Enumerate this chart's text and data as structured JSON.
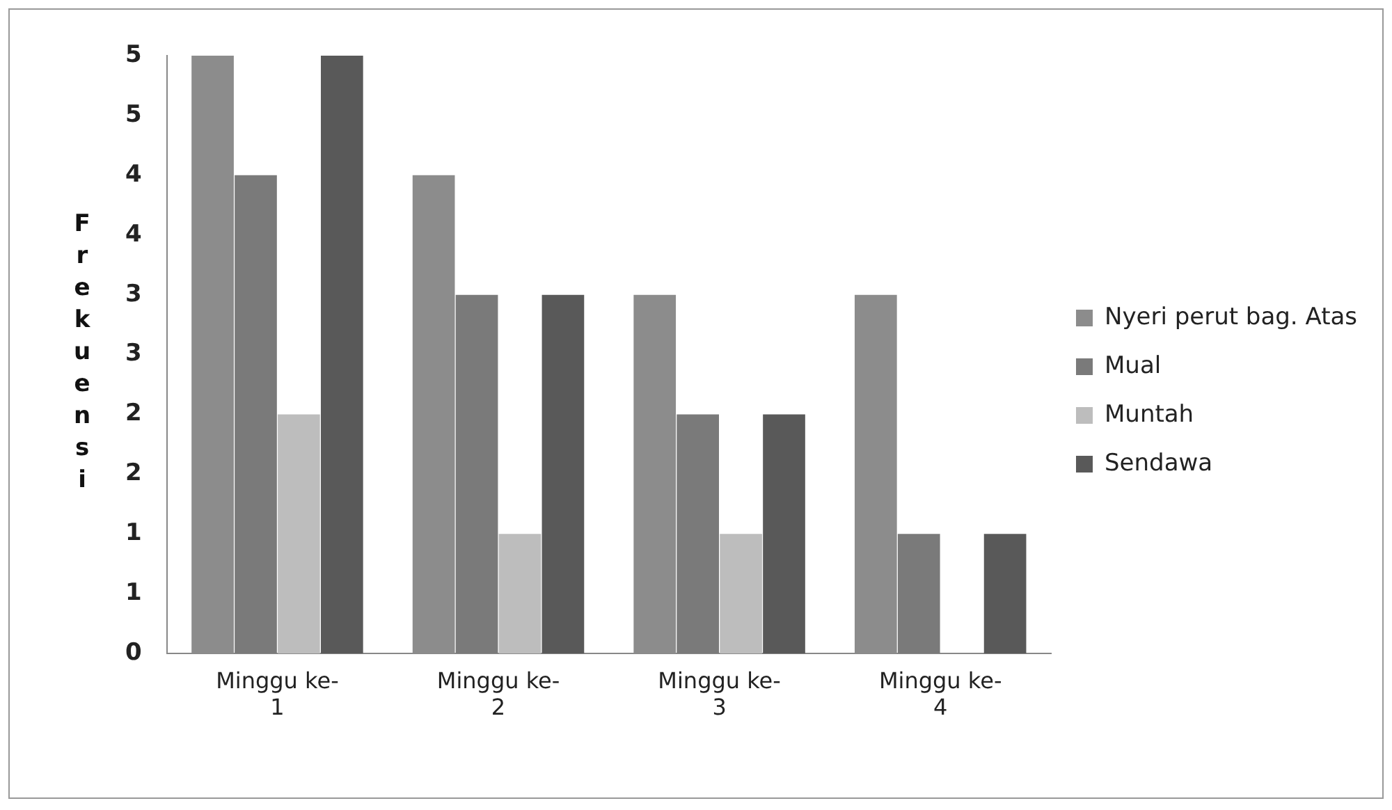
{
  "chart_data": {
    "type": "bar",
    "ylabel": "Frekuensi",
    "categories": [
      "Minggu ke-1",
      "Minggu ke-2",
      "Minggu ke-3",
      "Minggu ke-4"
    ],
    "series": [
      {
        "name": "Nyeri perut bag. Atas",
        "color": "#8c8c8c",
        "values": [
          5,
          4,
          3,
          3
        ]
      },
      {
        "name": "Mual",
        "color": "#7a7a7a",
        "values": [
          4,
          3,
          2,
          1
        ]
      },
      {
        "name": "Muntah",
        "color": "#bdbdbd",
        "values": [
          2,
          1,
          1,
          0
        ]
      },
      {
        "name": "Sendawa",
        "color": "#595959",
        "values": [
          5,
          3,
          2,
          1
        ]
      }
    ],
    "ylim": [
      0,
      5
    ],
    "yticks": [
      0,
      {
        "value": 0.5,
        "label": "1"
      },
      1,
      {
        "value": 1.5,
        "label": "2"
      },
      2,
      {
        "value": 2.5,
        "label": "3"
      },
      3,
      {
        "value": 3.5,
        "label": "4"
      },
      4,
      {
        "value": 4.5,
        "label": "5"
      },
      5
    ],
    "grid": false,
    "legend": "right"
  }
}
